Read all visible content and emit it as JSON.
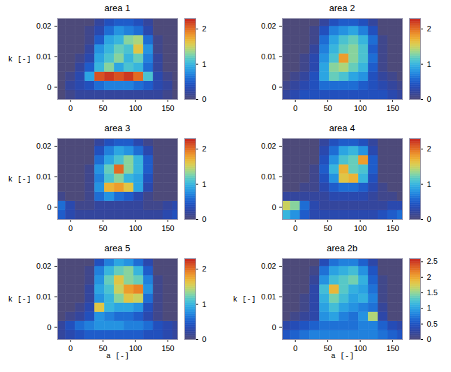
{
  "chart_data": [
    {
      "type": "heatmap",
      "title": "area 1",
      "y_label": "k [-]",
      "xlim": [
        -20,
        165
      ],
      "ylim": [
        -0.004,
        0.0225
      ],
      "xticks": [
        0,
        50,
        100,
        150
      ],
      "yticks": [
        0,
        0.01,
        0.02
      ],
      "x": [
        -15,
        0,
        15,
        30,
        45,
        60,
        75,
        90,
        105,
        120,
        135,
        150,
        165
      ],
      "y": [
        -0.0025,
        0.0005,
        0.0035,
        0.0065,
        0.0095,
        0.0125,
        0.0155,
        0.0185,
        0.0215
      ],
      "z": [
        [
          0,
          0.1,
          0.2,
          0.2,
          0.2,
          0.2,
          0.2,
          0.2,
          0.2,
          0.2,
          0.2,
          0.1,
          0
        ],
        [
          0,
          0.2,
          0.3,
          0.4,
          0.6,
          0.7,
          0.7,
          0.7,
          0.6,
          0.5,
          0.3,
          0.2,
          0
        ],
        [
          0,
          0.1,
          0.3,
          0.9,
          2.1,
          2.2,
          2.1,
          2.2,
          2.0,
          1.1,
          0.3,
          0.1,
          0
        ],
        [
          0,
          0,
          0.2,
          0.5,
          1.0,
          1.3,
          0.9,
          1.1,
          1.0,
          0.6,
          0.2,
          0,
          0
        ],
        [
          0,
          0,
          0.1,
          0.3,
          0.9,
          1.1,
          1.3,
          1.0,
          1.2,
          0.7,
          0.2,
          0,
          0
        ],
        [
          0,
          0,
          0,
          0.2,
          0.8,
          1.0,
          1.2,
          1.1,
          1.6,
          0.8,
          0.1,
          0,
          0
        ],
        [
          0,
          0,
          0,
          0.1,
          0.5,
          0.9,
          1.0,
          1.3,
          1.4,
          0.6,
          0.1,
          0,
          0
        ],
        [
          0,
          0,
          0,
          0.1,
          0.3,
          0.6,
          0.8,
          0.7,
          0.6,
          0.3,
          0,
          0,
          0
        ],
        [
          0,
          0,
          0,
          0,
          0.2,
          0.4,
          0.5,
          0.5,
          0.4,
          0.2,
          0,
          0,
          0
        ]
      ],
      "colorbar": {
        "range": [
          0,
          2.3
        ],
        "ticks": [
          0,
          1,
          2
        ]
      }
    },
    {
      "type": "heatmap",
      "title": "area 2",
      "xlim": [
        -20,
        165
      ],
      "ylim": [
        -0.004,
        0.0225
      ],
      "xticks": [
        0,
        50,
        100,
        150
      ],
      "yticks": [
        0,
        0.01,
        0.02
      ],
      "x": [
        -15,
        0,
        15,
        30,
        45,
        60,
        75,
        90,
        105,
        120,
        135,
        150,
        165
      ],
      "y": [
        -0.0025,
        0.0005,
        0.0035,
        0.0065,
        0.0095,
        0.0125,
        0.0155,
        0.0185,
        0.0215
      ],
      "z": [
        [
          0.2,
          0.3,
          0.4,
          0.4,
          0.4,
          0.4,
          0.4,
          0.4,
          0.4,
          0.4,
          0.4,
          0.3,
          0.2
        ],
        [
          0.1,
          0.2,
          0.3,
          0.4,
          0.6,
          0.6,
          0.6,
          0.6,
          0.5,
          0.4,
          0.3,
          0.2,
          0.1
        ],
        [
          0,
          0.1,
          0.2,
          0.4,
          0.9,
          1.2,
          1.1,
          0.9,
          0.8,
          0.4,
          0.2,
          0.1,
          0
        ],
        [
          0,
          0,
          0.1,
          0.3,
          0.9,
          1.3,
          1.4,
          1.2,
          1.0,
          0.5,
          0.1,
          0,
          0
        ],
        [
          0,
          0,
          0.1,
          0.3,
          0.8,
          1.1,
          1.8,
          1.3,
          1.1,
          0.6,
          0.1,
          0,
          0
        ],
        [
          0,
          0,
          0,
          0.2,
          0.7,
          1.0,
          1.2,
          1.3,
          1.1,
          0.5,
          0.1,
          0,
          0
        ],
        [
          0,
          0,
          0,
          0.1,
          0.6,
          0.9,
          1.1,
          1.2,
          1.0,
          0.6,
          0.1,
          0,
          0
        ],
        [
          0,
          0,
          0,
          0.1,
          0.4,
          0.7,
          0.8,
          0.9,
          0.7,
          0.4,
          0,
          0,
          0
        ],
        [
          0,
          0,
          0,
          0,
          0.2,
          0.4,
          0.5,
          0.5,
          0.4,
          0.2,
          0,
          0,
          0
        ]
      ],
      "colorbar": {
        "range": [
          0,
          2.3
        ],
        "ticks": [
          0,
          1,
          2
        ]
      }
    },
    {
      "type": "heatmap",
      "title": "area 3",
      "y_label": "k [-]",
      "xlim": [
        -20,
        165
      ],
      "ylim": [
        -0.004,
        0.0225
      ],
      "xticks": [
        0,
        50,
        100,
        150
      ],
      "yticks": [
        0,
        0.01,
        0.02
      ],
      "x": [
        -15,
        0,
        15,
        30,
        45,
        60,
        75,
        90,
        105,
        120,
        135,
        150,
        165
      ],
      "y": [
        -0.0025,
        0.0005,
        0.0035,
        0.0065,
        0.0095,
        0.0125,
        0.0155,
        0.0185,
        0.0215
      ],
      "z": [
        [
          0.5,
          0.3,
          0.2,
          0.2,
          0.2,
          0.2,
          0.2,
          0.2,
          0.2,
          0.2,
          0.2,
          0.3,
          0.4
        ],
        [
          0.6,
          0.3,
          0.1,
          0.1,
          0.2,
          0.2,
          0.2,
          0.2,
          0.2,
          0.1,
          0.1,
          0.2,
          0.3
        ],
        [
          0.1,
          0,
          0,
          0.1,
          0.6,
          0.8,
          0.6,
          0.5,
          0.3,
          0.1,
          0,
          0,
          0
        ],
        [
          0,
          0,
          0,
          0.1,
          0.8,
          1.7,
          1.8,
          1.6,
          0.9,
          0.3,
          0,
          0,
          0
        ],
        [
          0,
          0,
          0,
          0.1,
          0.7,
          1.1,
          1.3,
          1.0,
          0.9,
          0.4,
          0,
          0,
          0
        ],
        [
          0,
          0,
          0,
          0.1,
          0.8,
          1.2,
          2.0,
          1.3,
          1.0,
          0.5,
          0,
          0,
          0
        ],
        [
          0,
          0,
          0,
          0,
          0.6,
          0.9,
          1.1,
          1.3,
          1.0,
          0.5,
          0,
          0,
          0
        ],
        [
          0,
          0,
          0,
          0,
          0.4,
          0.7,
          0.9,
          0.8,
          0.6,
          0.3,
          0,
          0,
          0
        ],
        [
          0,
          0,
          0,
          0,
          0.2,
          0.4,
          0.5,
          0.5,
          0.3,
          0.1,
          0,
          0,
          0
        ]
      ],
      "colorbar": {
        "range": [
          0,
          2.3
        ],
        "ticks": [
          0,
          1,
          2
        ]
      }
    },
    {
      "type": "heatmap",
      "title": "area 4",
      "xlim": [
        -20,
        165
      ],
      "ylim": [
        -0.004,
        0.0225
      ],
      "xticks": [
        0,
        50,
        100,
        150
      ],
      "yticks": [
        0,
        0.01,
        0.02
      ],
      "x": [
        -15,
        0,
        15,
        30,
        45,
        60,
        75,
        90,
        105,
        120,
        135,
        150,
        165
      ],
      "y": [
        -0.0025,
        0.0005,
        0.0035,
        0.0065,
        0.0095,
        0.0125,
        0.0155,
        0.0185,
        0.0215
      ],
      "z": [
        [
          1.0,
          0.8,
          0.5,
          0.3,
          0.3,
          0.3,
          0.3,
          0.3,
          0.3,
          0.3,
          0.4,
          0.5,
          0.6
        ],
        [
          1.5,
          1.3,
          0.6,
          0.3,
          0.2,
          0.2,
          0.2,
          0.2,
          0.2,
          0.2,
          0.2,
          0.3,
          0.3
        ],
        [
          0.2,
          0.2,
          0.2,
          0.2,
          0.2,
          0.3,
          0.3,
          0.3,
          0.3,
          0.2,
          0.1,
          0.1,
          0
        ],
        [
          0,
          0,
          0.1,
          0.1,
          0.3,
          0.5,
          0.6,
          0.6,
          0.5,
          0.3,
          0.1,
          0,
          0
        ],
        [
          0,
          0,
          0,
          0.1,
          0.4,
          0.8,
          1.6,
          1.7,
          1.0,
          0.4,
          0,
          0,
          0
        ],
        [
          0,
          0,
          0,
          0.1,
          0.5,
          1.0,
          1.7,
          1.2,
          1.1,
          0.5,
          0,
          0,
          0
        ],
        [
          0,
          0,
          0,
          0,
          0.4,
          0.8,
          1.1,
          1.2,
          1.8,
          0.5,
          0,
          0,
          0
        ],
        [
          0,
          0,
          0,
          0,
          0.3,
          0.6,
          0.9,
          1.0,
          0.8,
          0.3,
          0,
          0,
          0
        ],
        [
          0,
          0,
          0,
          0,
          0.2,
          0.4,
          0.5,
          0.5,
          0.4,
          0.2,
          0,
          0,
          0
        ]
      ],
      "colorbar": {
        "range": [
          0,
          2.3
        ],
        "ticks": [
          0,
          1,
          2
        ]
      }
    },
    {
      "type": "heatmap",
      "title": "area 5",
      "x_label": "a [-]",
      "y_label": "k [-]",
      "xlim": [
        -20,
        165
      ],
      "ylim": [
        -0.004,
        0.0225
      ],
      "xticks": [
        0,
        50,
        100,
        150
      ],
      "yticks": [
        0,
        0.01,
        0.02
      ],
      "x": [
        -15,
        0,
        15,
        30,
        45,
        60,
        75,
        90,
        105,
        120,
        135,
        150,
        165
      ],
      "y": [
        -0.0025,
        0.0005,
        0.0035,
        0.0065,
        0.0095,
        0.0125,
        0.0155,
        0.0185,
        0.0215
      ],
      "z": [
        [
          0.2,
          0.3,
          0.4,
          0.5,
          0.5,
          0.5,
          0.5,
          0.5,
          0.5,
          0.4,
          0.4,
          0.3,
          0.2
        ],
        [
          0.2,
          0.4,
          0.6,
          0.7,
          0.8,
          0.8,
          0.8,
          0.7,
          0.7,
          0.6,
          0.4,
          0.3,
          0.2
        ],
        [
          0,
          0.1,
          0.2,
          0.4,
          0.8,
          0.7,
          0.6,
          0.6,
          0.5,
          0.3,
          0.1,
          0,
          0
        ],
        [
          0,
          0,
          0.1,
          0.3,
          1.6,
          1.0,
          0.9,
          0.9,
          0.8,
          0.4,
          0.1,
          0,
          0
        ],
        [
          0,
          0,
          0,
          0.2,
          0.8,
          1.0,
          1.3,
          1.6,
          1.5,
          0.6,
          0.1,
          0,
          0
        ],
        [
          0,
          0,
          0,
          0.2,
          0.9,
          1.1,
          1.5,
          1.8,
          1.9,
          0.8,
          0.1,
          0,
          0
        ],
        [
          0,
          0,
          0,
          0.1,
          0.8,
          1.2,
          1.6,
          1.3,
          1.2,
          0.7,
          0.1,
          0,
          0
        ],
        [
          0,
          0,
          0,
          0.1,
          0.7,
          1.0,
          1.2,
          1.3,
          1.0,
          0.5,
          0,
          0,
          0
        ],
        [
          0,
          0,
          0,
          0,
          0.4,
          0.7,
          0.9,
          0.8,
          0.6,
          0.3,
          0,
          0,
          0
        ]
      ],
      "colorbar": {
        "range": [
          0,
          2.3
        ],
        "ticks": [
          0,
          1,
          2
        ]
      }
    },
    {
      "type": "heatmap",
      "title": "area 2b",
      "x_label": "a [-]",
      "y_label": "k [-]",
      "xlim": [
        -20,
        165
      ],
      "ylim": [
        -0.004,
        0.0225
      ],
      "xticks": [
        0,
        50,
        100,
        150
      ],
      "yticks": [
        0,
        0.01,
        0.02
      ],
      "x": [
        -15,
        0,
        15,
        30,
        45,
        60,
        75,
        90,
        105,
        120,
        135,
        150,
        165
      ],
      "y": [
        -0.0025,
        0.0005,
        0.0035,
        0.0065,
        0.0095,
        0.0125,
        0.0155,
        0.0185,
        0.0215
      ],
      "z": [
        [
          0.5,
          0.6,
          0.7,
          0.8,
          0.8,
          0.8,
          0.8,
          0.8,
          0.8,
          0.8,
          0.7,
          0.6,
          0.5
        ],
        [
          0.3,
          0.4,
          0.5,
          0.6,
          0.7,
          0.7,
          0.7,
          0.7,
          0.8,
          0.8,
          0.6,
          0.4,
          0.3
        ],
        [
          0,
          0.1,
          0.2,
          0.3,
          0.9,
          1.0,
          0.8,
          0.7,
          0.9,
          1.6,
          0.3,
          0,
          0
        ],
        [
          0,
          0,
          0.1,
          0.3,
          1.0,
          1.2,
          1.0,
          0.9,
          0.8,
          0.7,
          0.2,
          0,
          0
        ],
        [
          0,
          0,
          0.1,
          0.3,
          1.1,
          1.4,
          1.2,
          1.0,
          1.1,
          0.8,
          0.1,
          0,
          0
        ],
        [
          0,
          0,
          0,
          0.3,
          1.2,
          1.9,
          1.3,
          1.1,
          1.0,
          0.7,
          0.1,
          0,
          0
        ],
        [
          0,
          0,
          0,
          0.2,
          0.9,
          1.2,
          1.3,
          1.4,
          1.1,
          0.6,
          0.1,
          0,
          0
        ],
        [
          0,
          0,
          0,
          0.1,
          0.7,
          1.0,
          1.1,
          1.2,
          0.9,
          0.5,
          0,
          0,
          0
        ],
        [
          0,
          0,
          0,
          0,
          0.4,
          0.7,
          0.8,
          0.8,
          0.6,
          0.3,
          0,
          0,
          0
        ]
      ],
      "colorbar": {
        "range": [
          0,
          2.6
        ],
        "ticks": [
          0,
          0.5,
          1,
          1.5,
          2,
          2.5
        ]
      }
    }
  ]
}
